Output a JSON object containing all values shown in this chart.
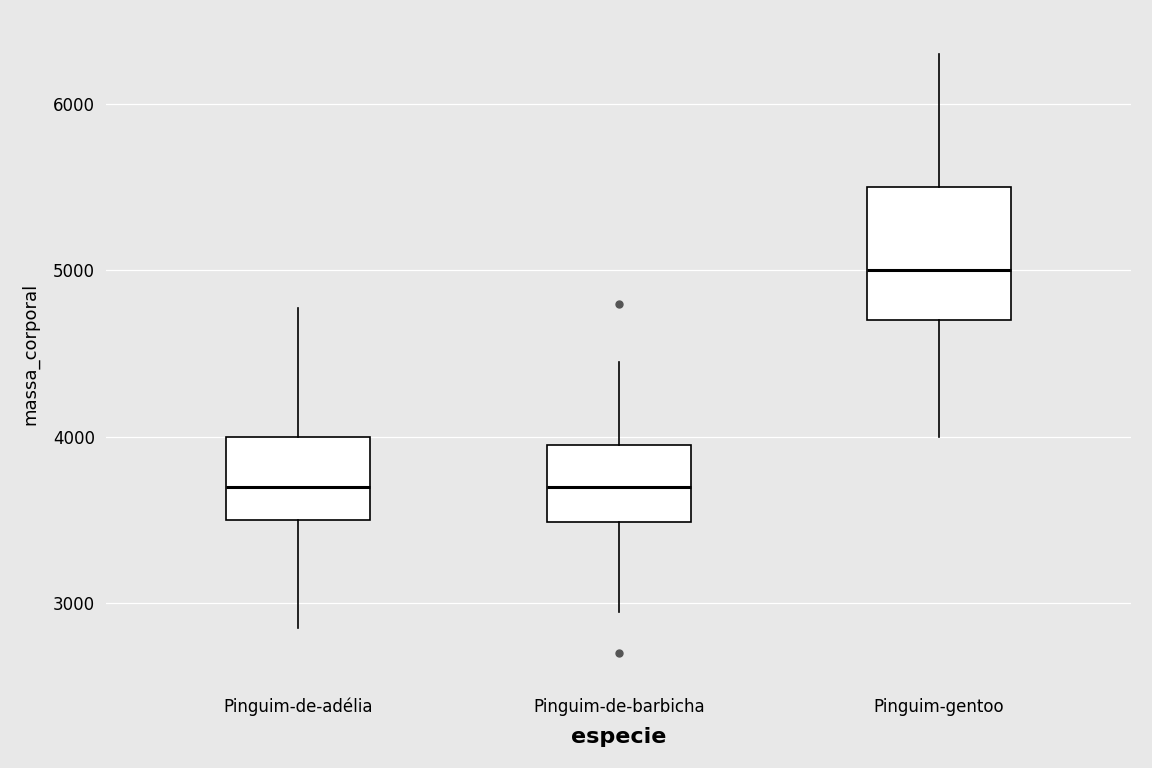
{
  "species": [
    "Pinguim-de-adélia",
    "Pinguim-de-barbicha",
    "Pinguim-gentoo"
  ],
  "xlabel": "especie",
  "ylabel": "massa_corporal",
  "background_color": "#e8e8e8",
  "box_facecolor": "white",
  "box_edgecolor": "black",
  "median_color": "black",
  "whisker_color": "black",
  "flier_color": "#555555",
  "ylim": [
    2500,
    6500
  ],
  "yticks": [
    3000,
    4000,
    5000,
    6000
  ],
  "box_stats": [
    {
      "label": "Pinguim-de-adélia",
      "q1": 3500,
      "median": 3700,
      "q3": 4000,
      "whislo": 2850,
      "whishi": 4775,
      "fliers": []
    },
    {
      "label": "Pinguim-de-barbicha",
      "q1": 3488,
      "median": 3700,
      "q3": 3950,
      "whislo": 2950,
      "whishi": 4450,
      "fliers": [
        4800,
        2700
      ]
    },
    {
      "label": "Pinguim-gentoo",
      "q1": 4700,
      "median": 5000,
      "q3": 5500,
      "whislo": 4000,
      "whishi": 6300,
      "fliers": []
    }
  ],
  "tick_fontsize": 12,
  "xlabel_fontsize": 16,
  "ylabel_fontsize": 13
}
